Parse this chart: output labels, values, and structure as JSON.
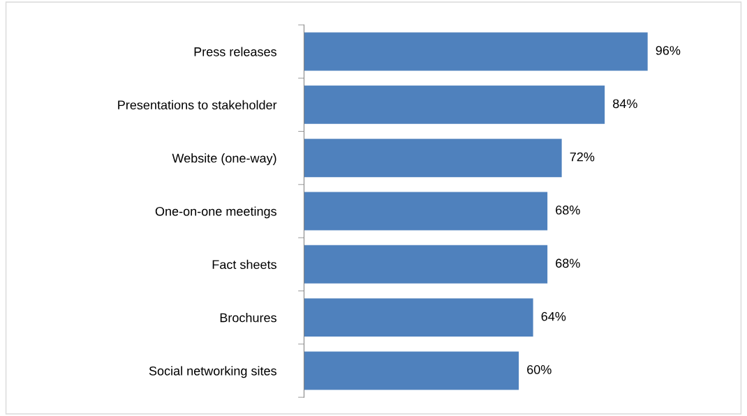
{
  "chart_data": {
    "type": "bar",
    "orientation": "horizontal",
    "categories": [
      "Press releases",
      "Presentations to stakeholder",
      "Website (one-way)",
      "One-on-one meetings",
      "Fact sheets",
      "Brochures",
      "Social networking sites"
    ],
    "values": [
      96,
      84,
      72,
      68,
      68,
      64,
      60
    ],
    "value_labels": [
      "96%",
      "84%",
      "72%",
      "68%",
      "68%",
      "64%",
      "60%"
    ],
    "color": "#4f81bd",
    "tick_labels": "y",
    "grid": false,
    "legend": false
  }
}
